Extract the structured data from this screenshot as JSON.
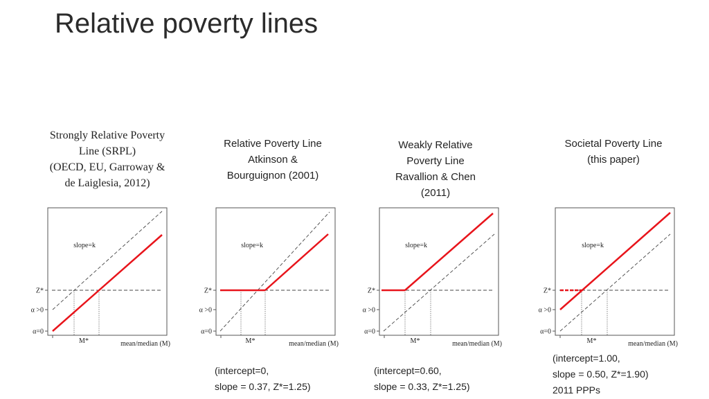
{
  "title": "Relative poverty lines",
  "panels": [
    {
      "caption": [
        "Strongly Relative Poverty",
        "Line (SRPL)",
        "(OECD, EU, Garroway &",
        "de Laiglesia, 2012)"
      ],
      "note": []
    },
    {
      "caption": [
        "Relative Poverty Line",
        "Atkinson &",
        "Bourguignon (2001)"
      ],
      "note": [
        "(intercept=0,",
        "slope = 0.37, Z*=1.25)"
      ]
    },
    {
      "caption": [
        "Weakly Relative",
        "Poverty Line",
        "Ravallion & Chen",
        "(2011)"
      ],
      "note": [
        "(intercept=0.60,",
        "slope = 0.33, Z*=1.25)"
      ]
    },
    {
      "caption": [
        "Societal Poverty Line",
        "(this paper)"
      ],
      "note": [
        "(intercept=1.00,",
        "slope = 0.50, Z*=1.90)",
        "2011 PPPs"
      ]
    }
  ],
  "axis": {
    "z": "Z*",
    "a_pos": "α >0",
    "a_zero": "α=0",
    "m": "M*",
    "xlabel": "mean/median (M)",
    "slope": "slope=k"
  },
  "colors": {
    "red": "#e8141b",
    "dash": "#444444"
  }
}
